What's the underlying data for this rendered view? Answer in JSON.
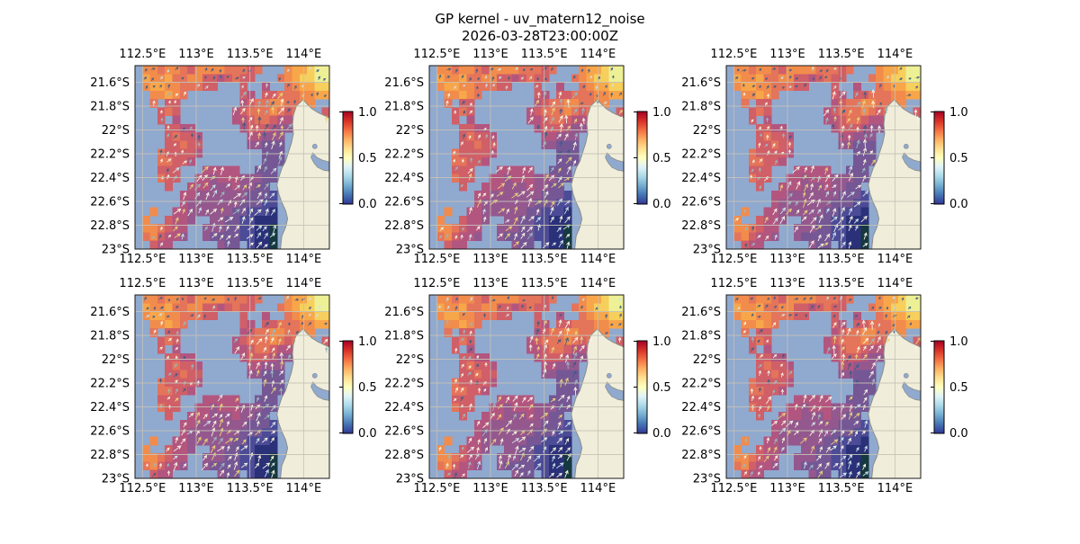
{
  "figure": {
    "title": "GP kernel - uv_matern12_noise",
    "subtitle": "2026-03-28T23:00:00Z",
    "background": "#ffffff"
  },
  "chart_data": {
    "type": "heatmap",
    "description": "2x3 grid of identical geographic vector-field heatmap panels over the Exmouth Gulf region; masked pixel cells colored by value with overlaid quiver arrows; per-panel vertical colorbar 0.0-1.0",
    "panels": [
      {
        "id": "panel-r1c1",
        "row": 0,
        "col": 0,
        "seed": 3
      },
      {
        "id": "panel-r1c2",
        "row": 0,
        "col": 1,
        "seed": 7
      },
      {
        "id": "panel-r1c3",
        "row": 0,
        "col": 2,
        "seed": 11
      },
      {
        "id": "panel-r2c1",
        "row": 1,
        "col": 0,
        "seed": 17
      },
      {
        "id": "panel-r2c2",
        "row": 1,
        "col": 1,
        "seed": 23
      },
      {
        "id": "panel-r2c3",
        "row": 1,
        "col": 2,
        "seed": 29
      }
    ],
    "x_tick_labels": [
      "112.5°E",
      "113°E",
      "113.5°E",
      "114°E"
    ],
    "x_tick_lons": [
      112.5,
      113.0,
      113.5,
      114.0
    ],
    "y_tick_labels": [
      "21.6°S",
      "21.8°S",
      "22°S",
      "22.2°S",
      "22.4°S",
      "22.6°S",
      "22.8°S",
      "23°S"
    ],
    "y_tick_lats": [
      21.6,
      21.8,
      22.0,
      22.2,
      22.4,
      22.6,
      22.8,
      23.0
    ],
    "lon_range": [
      112.43,
      114.24
    ],
    "lat_range": [
      21.46,
      23.0
    ],
    "colorbar": {
      "tick_labels": [
        "1.0",
        "0.5",
        "0.0"
      ],
      "vmin": 0.0,
      "vmax": 1.0,
      "gradient_top_to_bottom": [
        "#a50026",
        "#d73027",
        "#f46d43",
        "#fdae61",
        "#fee090",
        "#ffffbf",
        "#e0f3f8",
        "#abd9e9",
        "#74add1",
        "#4575b4",
        "#313695"
      ]
    },
    "value_grid": {
      "cols": 26,
      "rows": 22,
      "encoding": "char = cell value bucket: 0-9 => 0.0-0.9, a => 1.0 (brightest), k => darkest, . => masked/no data",
      "rows_pattern": [
        ".7767765777766656...7889aa",
        ".877866775545655...67899aa",
        ".7887766655...5..4..678899",
        "..77876.......54.556667788",
        "..6.55........4566776677..",
        "...565.......456667656...5",
        "...5.4.......44566544....5",
        "....5544......4555433.....",
        "....56554......44333......",
        "....55655......33222......",
        "...655554........222......",
        "...66554.........222......",
        "...555...44444..222.......",
        "...655..44344433322.......",
        "....5..44433343322........",
        "......4433333332221.......",
        "......4333333322211.......",
        "..7..44333333221110.......",
        ".7..5443..332211000.......",
        ".776544..333221100k.......",
        ".675443..322221100k.......",
        "..544......322.100k......."
      ]
    },
    "cell_palette": {
      "a": "#eef095",
      "9": "#f6cf5d",
      "8": "#f8a64a",
      "7": "#f18c4c",
      "6": "#e4745a",
      "5": "#d05f67",
      "4": "#b3567f",
      "3": "#94588e",
      "2": "#755795",
      "1": "#4c4b97",
      "0": "#2a3179",
      "k": "#16383f"
    },
    "map_colors": {
      "ocean": "#90a9cf",
      "land": "#f0eedb",
      "coast": "#8d8d89",
      "gridline": "#c6c2b6",
      "frame": "#1a1a1a"
    },
    "land_outline": [
      [
        0.865,
        0.185
      ],
      [
        0.885,
        0.21
      ],
      [
        0.91,
        0.235
      ],
      [
        0.94,
        0.255
      ],
      [
        0.97,
        0.27
      ],
      [
        1.0,
        0.285
      ],
      [
        1.0,
        1.0
      ],
      [
        0.748,
        1.0
      ],
      [
        0.755,
        0.93
      ],
      [
        0.775,
        0.88
      ],
      [
        0.785,
        0.835
      ],
      [
        0.775,
        0.79
      ],
      [
        0.755,
        0.745
      ],
      [
        0.74,
        0.7
      ],
      [
        0.73,
        0.65
      ],
      [
        0.74,
        0.61
      ],
      [
        0.755,
        0.56
      ],
      [
        0.775,
        0.52
      ],
      [
        0.79,
        0.47
      ],
      [
        0.805,
        0.42
      ],
      [
        0.815,
        0.37
      ],
      [
        0.81,
        0.32
      ],
      [
        0.815,
        0.27
      ],
      [
        0.83,
        0.22
      ]
    ],
    "gulf_inlet": [
      [
        1.0,
        0.525
      ],
      [
        0.965,
        0.515
      ],
      [
        0.935,
        0.5
      ],
      [
        0.915,
        0.475
      ],
      [
        0.905,
        0.5
      ],
      [
        0.92,
        0.53
      ],
      [
        0.94,
        0.555
      ],
      [
        0.97,
        0.57
      ],
      [
        1.0,
        0.575
      ]
    ],
    "small_lake": {
      "x": 0.925,
      "y": 0.44,
      "r": 0.012
    },
    "quiver": {
      "direction": "mostly north-east",
      "palette": {
        "dark": "#3f5c85",
        "cream": "#f7f3e2",
        "yellow": "#e9d27a",
        "pale": "#cfe2e8",
        "teal": "#9ab8c0"
      }
    }
  }
}
